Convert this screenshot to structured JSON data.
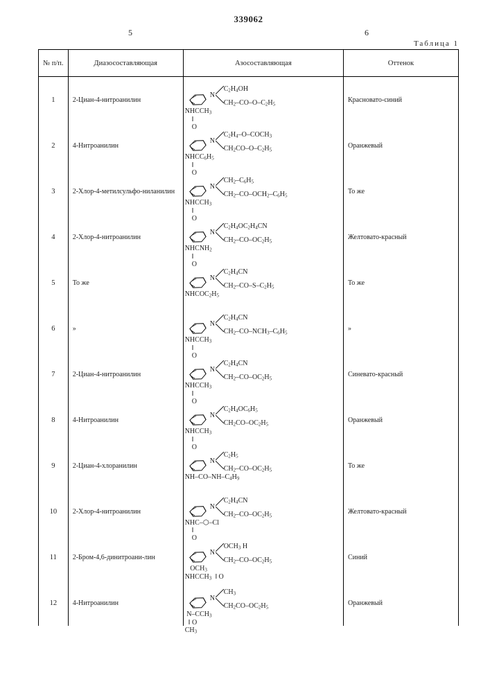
{
  "document_number": "339062",
  "col_left": "5",
  "col_right": "6",
  "table_label": "Таблица 1",
  "headers": {
    "num": "№ п/п.",
    "diazo": "Диазосоставляющая",
    "azo": "Азосоставляющая",
    "shade": "Оттенок"
  },
  "rows": [
    {
      "n": "1",
      "diazo": "2-Циан-4-нитроанилин",
      "upper": "C₂H₄OH",
      "lower": "CH₂–CO–O–C₂H₅",
      "subst": "NHCCH₃  ‖ O",
      "subst_html": "NHCCH<sub>3</sub><br>&nbsp;&nbsp;&nbsp;&nbsp;‖<br>&nbsp;&nbsp;&nbsp;&nbsp;O",
      "shade": "Красновато-синий"
    },
    {
      "n": "2",
      "diazo": "4-Нитроанилин",
      "upper": "C₂H₄–O–COCH₃",
      "lower": "CH₂CO–O–C₂H₅",
      "subst": "NHCC₆H₅  ‖ O",
      "subst_html": "NHCC<sub>6</sub>H<sub>5</sub><br>&nbsp;&nbsp;&nbsp;&nbsp;‖<br>&nbsp;&nbsp;&nbsp;&nbsp;O",
      "shade": "Оранжевый"
    },
    {
      "n": "3",
      "diazo": "2-Хлор-4-метилсульфо-ниланилин",
      "upper": "CH₂–C₆H₅",
      "lower": "CH₂–CO–OCH₂–C₆H₅",
      "subst": "NHCCH₃  ‖ O",
      "subst_html": "NHCCH<sub>3</sub><br>&nbsp;&nbsp;&nbsp;&nbsp;‖<br>&nbsp;&nbsp;&nbsp;&nbsp;O",
      "shade": "То же"
    },
    {
      "n": "4",
      "diazo": "2-Хлор-4-нитроанилин",
      "upper": "C₂H₄OC₂H₄CN",
      "lower": "CH₂–CO–OC₂H₅",
      "subst": "NHCNH₂  ‖ O",
      "subst_html": "NHCNH<sub>2</sub><br>&nbsp;&nbsp;&nbsp;&nbsp;‖<br>&nbsp;&nbsp;&nbsp;&nbsp;O",
      "shade": "Желтовато-красный"
    },
    {
      "n": "5",
      "diazo": "То же",
      "upper": "C₂H₄CN",
      "lower": "CH₂–CO–S–C₂H₅",
      "subst": "NHCOC₂H₅",
      "subst_html": "NHCOC<sub>2</sub>H<sub>5</sub>",
      "shade": "То же"
    },
    {
      "n": "6",
      "diazo": "»",
      "upper": "C₂H₄CN",
      "lower": "CH₂–CO–NCH₃–C₆H₅",
      "subst": "NHCCH₃  ‖ O",
      "subst_html": "NHCCH<sub>3</sub><br>&nbsp;&nbsp;&nbsp;&nbsp;‖<br>&nbsp;&nbsp;&nbsp;&nbsp;O",
      "shade": "»"
    },
    {
      "n": "7",
      "diazo": "2-Циан-4-нитроанилин",
      "upper": "C₂H₄CN",
      "lower": "CH₂–CO–OC₂H₅",
      "subst": "NHCCH₃  ‖ O",
      "subst_html": "NHCCH<sub>3</sub><br>&nbsp;&nbsp;&nbsp;&nbsp;‖<br>&nbsp;&nbsp;&nbsp;&nbsp;O",
      "shade": "Синевато-красный"
    },
    {
      "n": "8",
      "diazo": "4-Нитроанилин",
      "upper": "C₂H₄OC₆H₅",
      "lower": "CH₂CO–OC₂H₅",
      "subst": "NHCCH₃  ‖ O",
      "subst_html": "NHCCH<sub>3</sub><br>&nbsp;&nbsp;&nbsp;&nbsp;‖<br>&nbsp;&nbsp;&nbsp;&nbsp;O",
      "shade": "Оранжевый"
    },
    {
      "n": "9",
      "diazo": "2-Циан-4-хлоранилин",
      "upper": "C₂H₅",
      "lower": "CH₂–CO–OC₂H₅",
      "subst": "NH–CO–NH–C₄H₉",
      "subst_html": "NH–CO–NH–C<sub>4</sub>H<sub>9</sub>",
      "shade": "То же"
    },
    {
      "n": "10",
      "diazo": "2-Хлор-4-нитроанилин",
      "upper": "C₂H₄CN",
      "lower": "CH₂–CO–OC₂H₅",
      "subst": "NHC–◯–Cl  ‖ O",
      "subst_html": "NHC–⬡–Cl<br>&nbsp;&nbsp;&nbsp;&nbsp;‖<br>&nbsp;&nbsp;&nbsp;&nbsp;O",
      "shade": "Желтовато-красный"
    },
    {
      "n": "11",
      "diazo": "2-Бром-4,6-динитроани-лин",
      "upper": "OCH₃ H",
      "lower": "CH₂–CO–OC₂H₅",
      "subst": "NHCCH₃  ‖ O",
      "subst_html": "&nbsp;&nbsp;&nbsp;OCH<sub>3</sub><br>NHCCH<sub>3</sub>&nbsp;&nbsp;‖&nbsp;O",
      "shade": "Синий"
    },
    {
      "n": "12",
      "diazo": "4-Нитроанилин",
      "upper": "CH₃",
      "lower": "CH₂CO–OC₂H₅",
      "subst": "N–CCH₃  ‖ O  CH₃",
      "subst_html": "&nbsp;N–CCH<sub>3</sub><br>&nbsp;&nbsp;‖&nbsp;O<br>CH<sub>3</sub>",
      "shade": "Оранжевый"
    }
  ]
}
